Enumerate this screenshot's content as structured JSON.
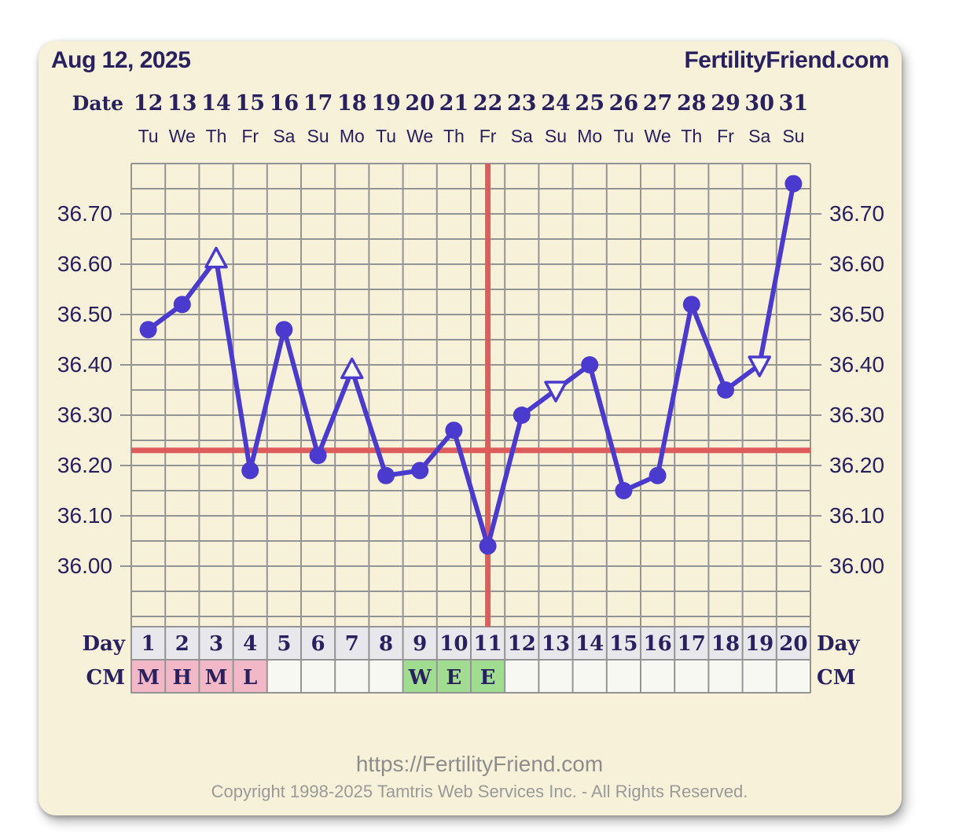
{
  "header": {
    "date_label": "Aug 12, 2025",
    "brand": "FertilityFriend.com"
  },
  "labels": {
    "date_row": "Date",
    "day_row_left": "Day",
    "day_row_right": "Day",
    "cm_row_left": "CM",
    "cm_row_right": "CM"
  },
  "footer": {
    "url": "https://FertilityFriend.com",
    "copyright": "Copyright 1998-2025 Tamtris Web Services Inc. - All Rights Reserved."
  },
  "colors": {
    "navy": "#29215f",
    "line_purple": "#4a3ace",
    "red_line": "#dd5c5c",
    "grid_gray": "#949494",
    "card_bg": "#f6f1d8",
    "day_cell_bg": "#e7e7ec",
    "cm_pink": "#f3b8c8",
    "cm_green": "#a1dd91",
    "cm_empty": "#f8f8f2",
    "marker_open_fill": "#fcfbf0",
    "footer_gray": "#8d8d8d"
  },
  "chart_data": {
    "type": "line",
    "title": "Basal body temperature cycle chart",
    "grid": "on",
    "x_dates": [
      "12",
      "13",
      "14",
      "15",
      "16",
      "17",
      "18",
      "19",
      "20",
      "21",
      "22",
      "23",
      "24",
      "25",
      "26",
      "27",
      "28",
      "29",
      "30",
      "31"
    ],
    "x_weekdays": [
      "Tu",
      "We",
      "Th",
      "Fr",
      "Sa",
      "Su",
      "Mo",
      "Tu",
      "We",
      "Th",
      "Fr",
      "Sa",
      "Su",
      "Mo",
      "Tu",
      "We",
      "Th",
      "Fr",
      "Sa",
      "Su"
    ],
    "cycle_days": [
      "1",
      "2",
      "3",
      "4",
      "5",
      "6",
      "7",
      "8",
      "9",
      "10",
      "11",
      "12",
      "13",
      "14",
      "15",
      "16",
      "17",
      "18",
      "19",
      "20"
    ],
    "series": [
      {
        "name": "temperature",
        "values": [
          36.47,
          36.52,
          36.61,
          36.19,
          36.47,
          36.22,
          36.39,
          36.18,
          36.19,
          36.27,
          36.04,
          36.3,
          36.35,
          36.4,
          36.15,
          36.18,
          36.52,
          36.35,
          36.4,
          36.76
        ],
        "markers": [
          "dot",
          "dot",
          "triangle-up",
          "dot",
          "dot",
          "dot",
          "triangle-up",
          "dot",
          "dot",
          "dot",
          "dot",
          "dot",
          "triangle-down",
          "dot",
          "dot",
          "dot",
          "dot",
          "dot",
          "triangle-down",
          "dot"
        ]
      }
    ],
    "ylim": [
      35.9,
      36.8
    ],
    "yticks": [
      36.0,
      36.1,
      36.2,
      36.3,
      36.4,
      36.5,
      36.6,
      36.7
    ],
    "coverline_value": 36.23,
    "ovulation_line_cycle_day": 11,
    "cm_row": [
      "M",
      "H",
      "M",
      "L",
      "",
      "",
      "",
      "",
      "W",
      "E",
      "E",
      "",
      "",
      "",
      "",
      "",
      "",
      "",
      "",
      ""
    ]
  }
}
